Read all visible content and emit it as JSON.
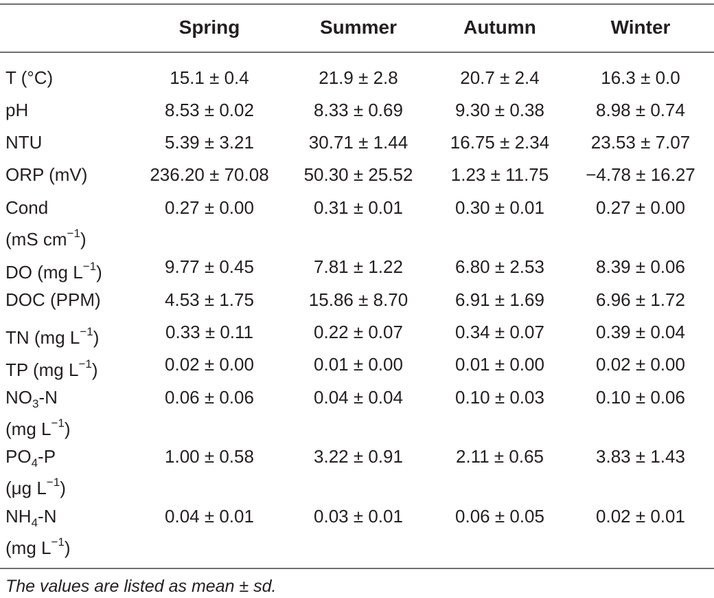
{
  "table": {
    "headers": [
      "",
      "Spring",
      "Summer",
      "Autumn",
      "Winter"
    ],
    "rows": [
      {
        "label_parts": [
          "T (°C)"
        ],
        "values": [
          "15.1 ± 0.4",
          "21.9 ± 2.8",
          "20.7 ± 2.4",
          "16.3 ± 0.0"
        ]
      },
      {
        "label_parts": [
          "pH"
        ],
        "values": [
          "8.53 ± 0.02",
          "8.33 ± 0.69",
          "9.30 ± 0.38",
          "8.98 ± 0.74"
        ]
      },
      {
        "label_parts": [
          "NTU"
        ],
        "values": [
          "5.39 ± 3.21",
          "30.71 ± 1.44",
          "16.75 ± 2.34",
          "23.53 ± 7.07"
        ]
      },
      {
        "label_parts": [
          "ORP (mV)"
        ],
        "values": [
          "236.20 ± 70.08",
          "50.30 ± 25.52",
          "1.23 ± 11.75",
          "−4.78 ± 16.27"
        ]
      },
      {
        "label_line1": "Cond",
        "label_line2_pre": "(mS cm",
        "label_line2_sup": "−1",
        "label_line2_post": ")",
        "values": [
          "0.27 ± 0.00",
          "0.31 ± 0.01",
          "0.30 ± 0.01",
          "0.27 ± 0.00"
        ]
      },
      {
        "label_pre": "DO (mg L",
        "label_sup": "−1",
        "label_post": ")",
        "values": [
          "9.77 ± 0.45",
          "7.81 ± 1.22",
          "6.80 ± 2.53",
          "8.39 ± 0.06"
        ]
      },
      {
        "label_parts": [
          "DOC (PPM)"
        ],
        "values": [
          "4.53 ± 1.75",
          "15.86 ± 8.70",
          "6.91 ± 1.69",
          "6.96 ± 1.72"
        ]
      },
      {
        "label_pre": "TN (mg L",
        "label_sup": "−1",
        "label_post": ")",
        "values": [
          "0.33 ± 0.11",
          "0.22 ± 0.07",
          "0.34 ± 0.07",
          "0.39 ± 0.04"
        ]
      },
      {
        "label_pre": "TP (mg L",
        "label_sup": "−1",
        "label_post": ")",
        "values": [
          "0.02 ± 0.00",
          "0.01 ± 0.00",
          "0.01 ± 0.00",
          "0.02 ± 0.00"
        ]
      },
      {
        "label_l1_pre": "NO",
        "label_l1_sub": "3",
        "label_l1_post": "-N",
        "label_l2_pre": "(mg L",
        "label_l2_sup": "−1",
        "label_l2_post": ")",
        "values": [
          "0.06 ± 0.06",
          "0.04 ± 0.04",
          "0.10 ± 0.03",
          "0.10 ± 0.06"
        ]
      },
      {
        "label_l1_pre": "PO",
        "label_l1_sub": "4",
        "label_l1_post": "-P",
        "label_l2_pre": "(μg L",
        "label_l2_sup": "−1",
        "label_l2_post": ")",
        "values": [
          "1.00 ± 0.58",
          "3.22 ± 0.91",
          "2.11 ± 0.65",
          "3.83 ± 1.43"
        ]
      },
      {
        "label_l1_pre": "NH",
        "label_l1_sub": "4",
        "label_l1_post": "-N",
        "label_l2_pre": "(mg L",
        "label_l2_sup": "−1",
        "label_l2_post": ")",
        "values": [
          "0.04 ± 0.01",
          "0.03 ± 0.01",
          "0.06 ± 0.05",
          "0.02 ± 0.01"
        ]
      }
    ],
    "footnote": "The values are listed as mean ± sd."
  }
}
